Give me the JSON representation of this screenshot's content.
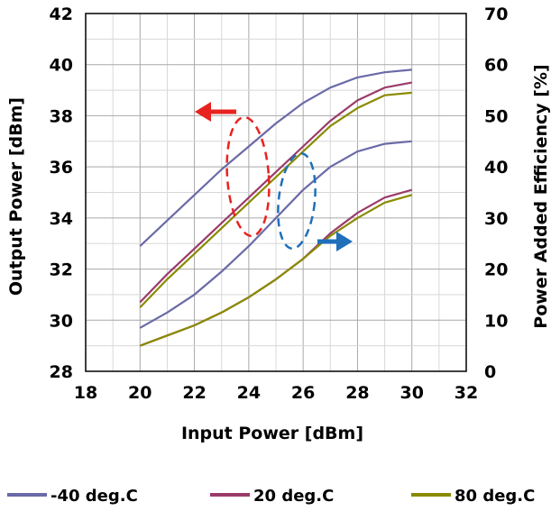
{
  "chart_data": {
    "type": "line",
    "xlabel": "Input Power [dBm]",
    "ylabel_left": "Output Power [dBm]",
    "ylabel_right": "Power Added Efficiency [%]",
    "xlim": [
      18,
      32
    ],
    "ylim_left": [
      28,
      42
    ],
    "ylim_right": [
      0,
      70
    ],
    "x_ticks": [
      "18",
      "20",
      "22",
      "24",
      "26",
      "28",
      "30",
      "32"
    ],
    "y_left_ticks": [
      "28",
      "30",
      "32",
      "34",
      "36",
      "38",
      "40",
      "42"
    ],
    "y_right_ticks": [
      "0",
      "10",
      "20",
      "30",
      "40",
      "50",
      "60",
      "70"
    ],
    "grid": true,
    "legend_position": "bottom",
    "x": [
      20,
      21,
      22,
      23,
      24,
      25,
      26,
      27,
      28,
      29,
      30
    ],
    "series": [
      {
        "name": "-40 deg.C",
        "color": "#6a6aa8",
        "axis": "left",
        "values": [
          32.9,
          33.9,
          34.9,
          35.9,
          36.8,
          37.7,
          38.5,
          39.1,
          39.5,
          39.7,
          39.8
        ]
      },
      {
        "name": "20 deg.C",
        "color": "#9b3b6a",
        "axis": "left",
        "values": [
          30.7,
          31.8,
          32.8,
          33.8,
          34.8,
          35.8,
          36.8,
          37.8,
          38.6,
          39.1,
          39.3
        ]
      },
      {
        "name": "80 deg.C",
        "color": "#8a8a00",
        "axis": "left",
        "values": [
          30.5,
          31.6,
          32.6,
          33.6,
          34.6,
          35.6,
          36.6,
          37.6,
          38.3,
          38.8,
          38.9
        ]
      },
      {
        "name": "-40 deg.C",
        "color": "#6a6aa8",
        "axis": "right",
        "values": [
          8.5,
          11.5,
          15.0,
          19.5,
          24.5,
          30.0,
          35.5,
          40.0,
          43.0,
          44.5,
          45.0
        ]
      },
      {
        "name": "20 deg.C",
        "color": "#9b3b6a",
        "axis": "right",
        "values": [
          5.0,
          7.0,
          9.0,
          11.5,
          14.5,
          18.0,
          22.0,
          27.0,
          31.0,
          34.0,
          35.5
        ]
      },
      {
        "name": "80 deg.C",
        "color": "#8a8a00",
        "axis": "right",
        "values": [
          5.0,
          7.0,
          9.0,
          11.5,
          14.5,
          18.0,
          22.0,
          26.5,
          30.0,
          33.0,
          34.5
        ]
      }
    ],
    "annotations": [
      {
        "points_to": "left axis",
        "color": "#e8231f"
      },
      {
        "points_to": "right axis",
        "color": "#1f6fba"
      }
    ]
  }
}
